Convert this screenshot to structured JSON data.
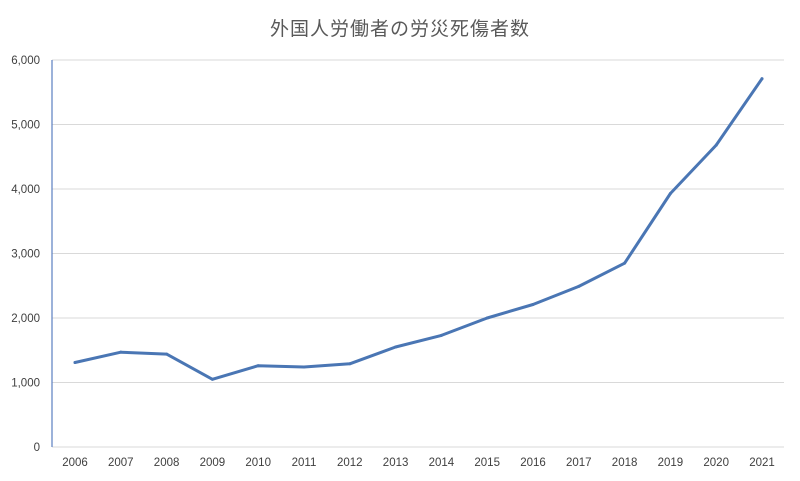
{
  "chart_data": {
    "type": "line",
    "title": "外国人労働者の労災死傷者数",
    "xlabel": "",
    "ylabel": "",
    "categories": [
      "2006",
      "2007",
      "2008",
      "2009",
      "2010",
      "2011",
      "2012",
      "2013",
      "2014",
      "2015",
      "2016",
      "2017",
      "2018",
      "2019",
      "2020",
      "2021"
    ],
    "series": [
      {
        "color": "#4a76b4",
        "values": [
          1310,
          1470,
          1440,
          1050,
          1260,
          1240,
          1290,
          1550,
          1730,
          2000,
          2210,
          2490,
          2850,
          3930,
          4680,
          5710
        ]
      }
    ],
    "ylim": [
      0,
      6000
    ],
    "yticks": [
      0,
      1000,
      2000,
      3000,
      4000,
      5000,
      6000
    ],
    "ytick_labels": [
      "0",
      "1,000",
      "2,000",
      "3,000",
      "4,000",
      "5,000",
      "6,000"
    ],
    "grid": true,
    "legend": "none"
  }
}
